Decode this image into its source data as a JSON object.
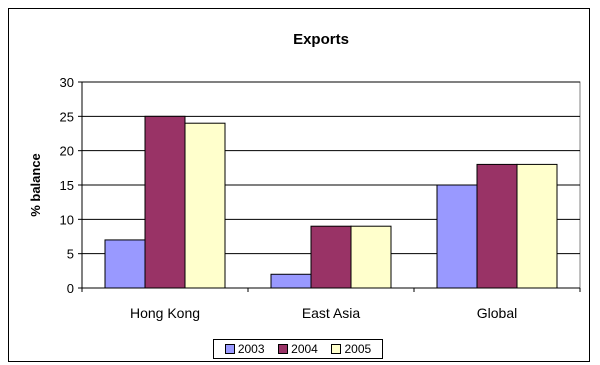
{
  "chart_data": {
    "type": "bar",
    "title": "Exports",
    "ylabel": "% balance",
    "xlabel": "",
    "categories": [
      "Hong Kong",
      "East Asia",
      "Global"
    ],
    "series": [
      {
        "name": "2003",
        "color": "#9999ff",
        "values": [
          7,
          2,
          15
        ]
      },
      {
        "name": "2004",
        "color": "#993366",
        "values": [
          25,
          9,
          18
        ]
      },
      {
        "name": "2005",
        "color": "#ffffcc",
        "values": [
          24,
          9,
          18
        ]
      }
    ],
    "ylim": [
      0,
      30
    ],
    "yticks": [
      "0",
      "5",
      "10",
      "15",
      "20",
      "25",
      "30"
    ],
    "grid": true,
    "legend": "bottom"
  }
}
